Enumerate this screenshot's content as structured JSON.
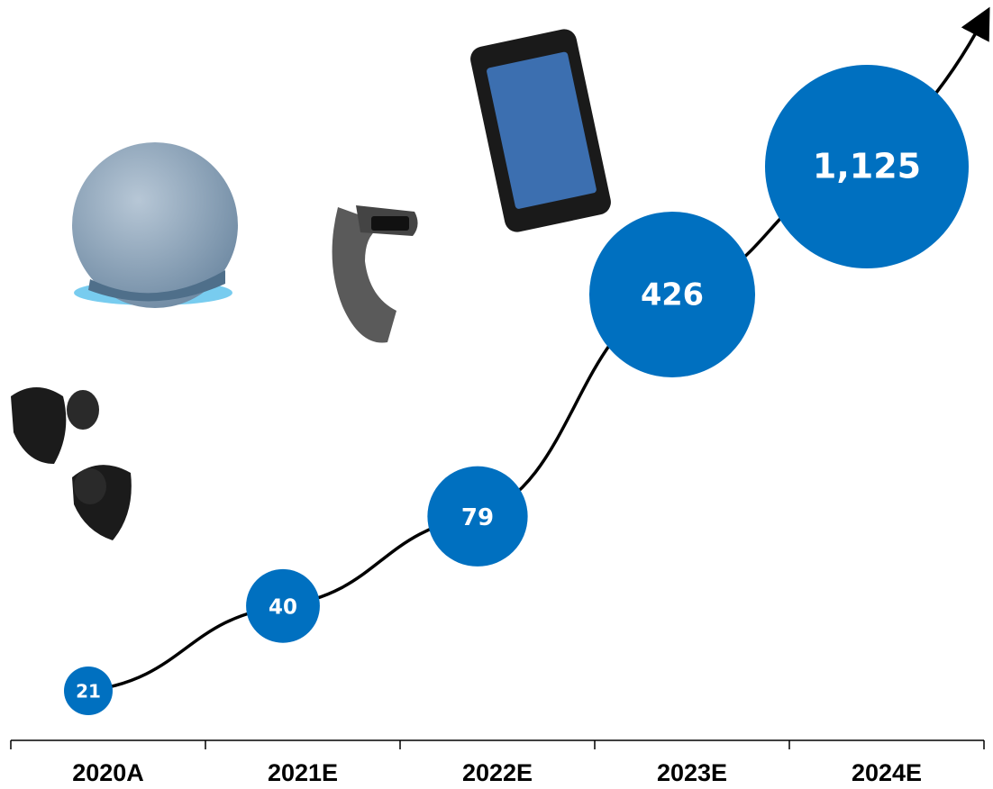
{
  "chart_data": {
    "type": "bubble",
    "categories": [
      "2020A",
      "2021E",
      "2022E",
      "2023E",
      "2024E"
    ],
    "values": [
      21,
      40,
      79,
      426,
      1125
    ],
    "value_labels": [
      "21",
      "40",
      "79",
      "426",
      "1,125"
    ],
    "color": "#0070c0"
  }
}
